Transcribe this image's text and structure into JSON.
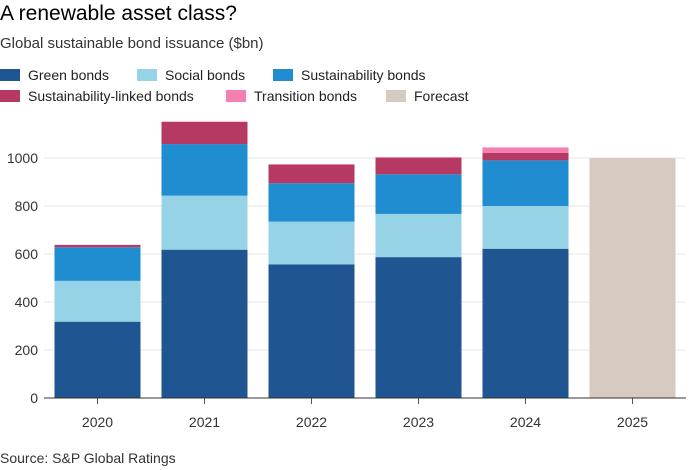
{
  "chart_data": {
    "type": "bar",
    "stacked": true,
    "title": "A renewable asset class?",
    "subtitle": "Global sustainable bond issuance ($bn)",
    "categories": [
      "2020",
      "2021",
      "2022",
      "2023",
      "2024",
      "2025"
    ],
    "series": [
      {
        "name": "Green bonds",
        "color": "#1f5591",
        "values": [
          318,
          618,
          557,
          587,
          622,
          null
        ]
      },
      {
        "name": "Social bonds",
        "color": "#96d3e6",
        "values": [
          170,
          225,
          178,
          180,
          178,
          null
        ]
      },
      {
        "name": "Sustainability bonds",
        "color": "#1f8dd0",
        "values": [
          140,
          215,
          160,
          165,
          190,
          null
        ]
      },
      {
        "name": "Sustainability-linked bonds",
        "color": "#b53963",
        "values": [
          10,
          92,
          77,
          68,
          32,
          null
        ]
      },
      {
        "name": "Transition bonds",
        "color": "#f47fb0",
        "values": [
          0,
          2,
          3,
          4,
          22,
          null
        ]
      },
      {
        "name": "Forecast",
        "color": "#d7cbc1",
        "values": [
          null,
          null,
          null,
          null,
          null,
          1000
        ]
      }
    ],
    "ylim": [
      0,
      1200
    ],
    "yticks": [
      0,
      200,
      400,
      600,
      800,
      1000
    ],
    "grid": true,
    "legend_position": "top-left"
  },
  "source": "Source: S&P Global Ratings"
}
